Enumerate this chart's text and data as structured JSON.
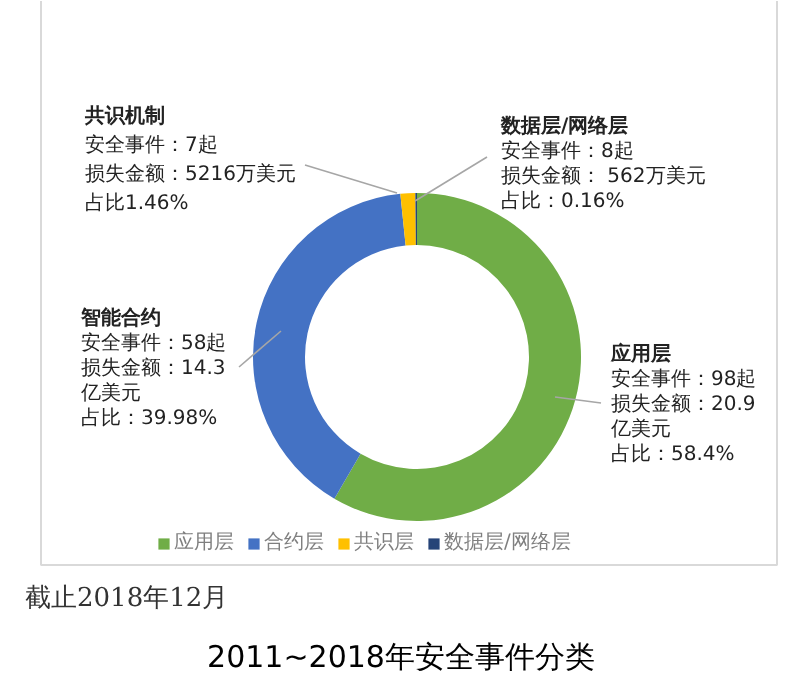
{
  "chart_data": {
    "type": "donut",
    "title": "2011~2018年安全事件分类",
    "categories": [
      "应用层",
      "合约层",
      "共识层",
      "数据层/网络层"
    ],
    "values": [
      58.4,
      39.98,
      1.46,
      0.16
    ],
    "colors": [
      "#70ad47",
      "#4472c4",
      "#ffc000",
      "#264478"
    ],
    "legend": "bottom",
    "annotations": [
      "共识机制",
      "安全事件：7起",
      "损失金额：5216万美元",
      "占比1.46%",
      "数据层/网络层",
      "安全事件：8起",
      "损失金额： 562万美元",
      "占比：0.16%",
      "智能合约",
      "安全事件：58起",
      "损失金额：14.3",
      "亿美元",
      "占比：39.98%",
      "应用层",
      "安全事件：98起",
      "损失金额：20.9",
      "亿美元",
      "占比：58.4%",
      "截止2018年12月"
    ]
  }
}
